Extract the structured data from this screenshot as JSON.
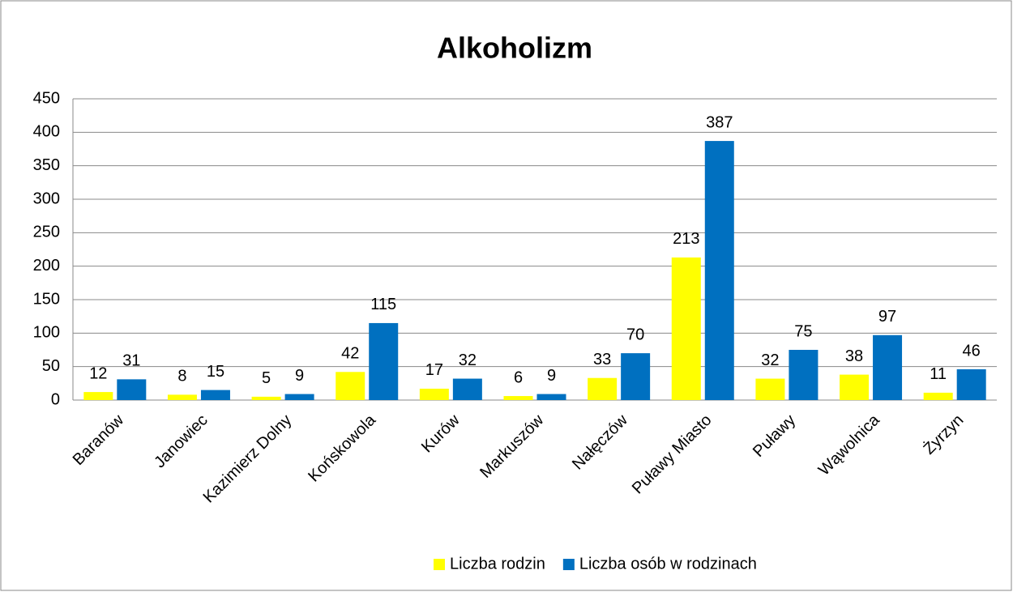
{
  "chart_data": {
    "type": "bar",
    "title": "Alkoholizm",
    "categories": [
      "Baranów",
      "Janowiec",
      "Kazimierz Dolny",
      "Końskowola",
      "Kurów",
      "Markuszów",
      "Nałęczów",
      "Puławy Miasto",
      "Puławy",
      "Wąwolnica",
      "Żyrzyn"
    ],
    "series": [
      {
        "name": "Liczba rodzin",
        "color": "#ffff00",
        "values": [
          12,
          8,
          5,
          42,
          17,
          6,
          33,
          213,
          32,
          38,
          11
        ]
      },
      {
        "name": "Liczba osób w rodzinach",
        "color": "#0070c0",
        "values": [
          31,
          15,
          9,
          115,
          32,
          9,
          70,
          387,
          75,
          97,
          46
        ]
      }
    ],
    "ylim": [
      0,
      450
    ],
    "yticks": [
      0,
      50,
      100,
      150,
      200,
      250,
      300,
      350,
      400,
      450
    ],
    "grid": true,
    "legend": "bottom"
  }
}
